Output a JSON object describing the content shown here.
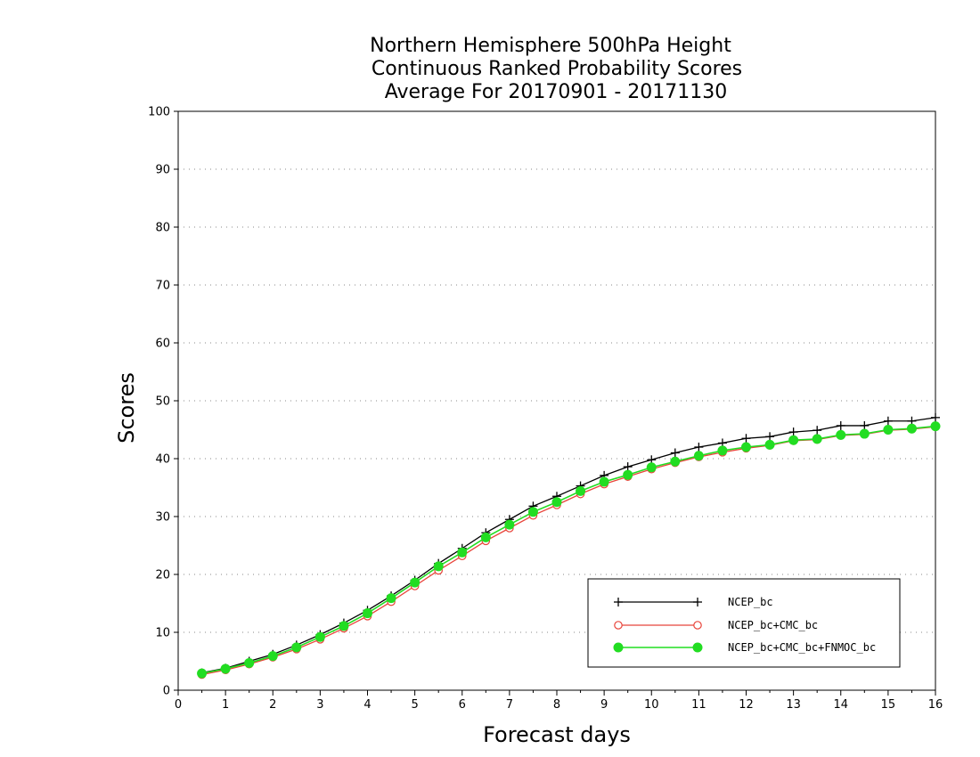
{
  "chart_data": {
    "type": "line",
    "title": [
      "Northern Hemisphere 500hPa Height",
      "Continuous Ranked Probability Scores",
      "Average For 20170901 - 20171130"
    ],
    "xlabel": "Forecast days",
    "ylabel": "Scores",
    "xlim": [
      0,
      16
    ],
    "ylim": [
      0,
      100
    ],
    "xticks": [
      "0",
      "1",
      "2",
      "3",
      "4",
      "5",
      "6",
      "7",
      "8",
      "9",
      "10",
      "11",
      "12",
      "13",
      "14",
      "15",
      "16"
    ],
    "yticks": [
      "0",
      "10",
      "20",
      "30",
      "40",
      "50",
      "60",
      "70",
      "80",
      "90",
      "100"
    ],
    "grid": "horizontal-dotted",
    "legend_position": "bottom-right",
    "x": [
      0.5,
      1,
      1.5,
      2,
      2.5,
      3,
      3.5,
      4,
      4.5,
      5,
      5.5,
      6,
      6.5,
      7,
      7.5,
      8,
      8.5,
      9,
      9.5,
      10,
      10.5,
      11,
      11.5,
      12,
      12.5,
      13,
      13.5,
      14,
      14.5,
      15,
      15.5,
      16
    ],
    "series": [
      {
        "name": "NCEP_bc",
        "color": "#000000",
        "marker": "plus",
        "values": [
          3.0,
          3.8,
          5.0,
          6.2,
          7.8,
          9.6,
          11.6,
          13.8,
          16.3,
          19.0,
          21.9,
          24.5,
          27.2,
          29.5,
          31.8,
          33.5,
          35.3,
          37.1,
          38.6,
          39.8,
          41.0,
          42.0,
          42.7,
          43.5,
          43.8,
          44.6,
          44.9,
          45.7,
          45.7,
          46.5,
          46.5,
          47.1
        ]
      },
      {
        "name": "NCEP_bc+CMC_bc",
        "color": "#e8443a",
        "marker": "open-circle",
        "values": [
          2.7,
          3.5,
          4.5,
          5.7,
          7.1,
          8.8,
          10.7,
          12.8,
          15.3,
          18.0,
          20.7,
          23.2,
          25.8,
          28.0,
          30.2,
          32.0,
          33.9,
          35.6,
          36.9,
          38.2,
          39.3,
          40.3,
          41.1,
          41.8,
          42.3,
          43.1,
          43.3,
          44.0,
          44.2,
          44.9,
          45.1,
          45.5
        ]
      },
      {
        "name": "NCEP_bc+CMC_bc+FNMOC_bc",
        "color": "#22dd22",
        "marker": "filled-circle",
        "values": [
          2.9,
          3.7,
          4.7,
          5.9,
          7.4,
          9.2,
          11.1,
          13.3,
          15.9,
          18.6,
          21.4,
          23.8,
          26.4,
          28.6,
          30.8,
          32.5,
          34.4,
          36.0,
          37.2,
          38.5,
          39.5,
          40.5,
          41.4,
          42.0,
          42.4,
          43.2,
          43.4,
          44.1,
          44.3,
          45.0,
          45.2,
          45.6
        ]
      }
    ]
  }
}
